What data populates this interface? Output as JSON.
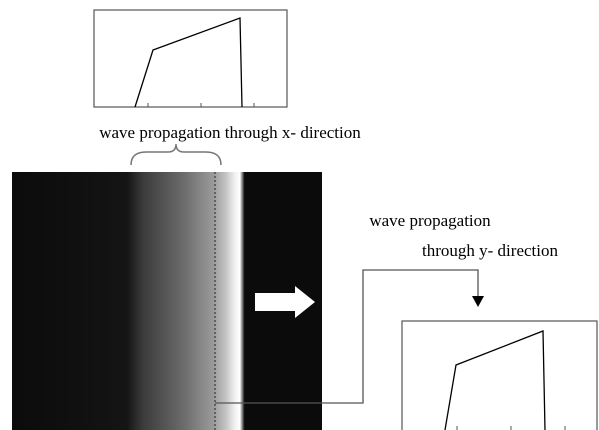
{
  "captions": {
    "x_direction": "wave propagation through x- direction",
    "y_direction_line1": "wave propagation",
    "y_direction_line2": "through y- direction"
  }
}
